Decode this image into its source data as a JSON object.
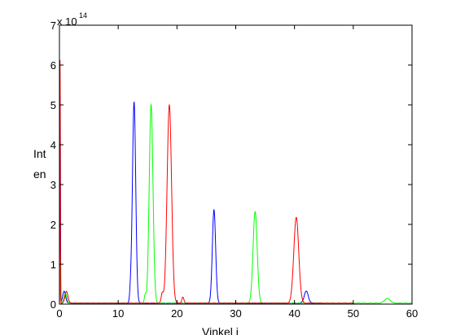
{
  "chart_data": {
    "type": "line",
    "title": "",
    "xlabel": "Vinkel i",
    "ylabel_lines": [
      "Int",
      "en"
    ],
    "y_multiplier_base": "x 10",
    "y_multiplier_exp": "14",
    "xlim": [
      0,
      60
    ],
    "ylim": [
      0,
      7
    ],
    "xticks": [
      0,
      10,
      20,
      30,
      40,
      50,
      60
    ],
    "yticks": [
      0,
      1,
      2,
      3,
      4,
      5,
      6,
      7
    ],
    "grid": false,
    "legend": "none",
    "series": [
      {
        "color": "#0000ff",
        "x_end": 45,
        "spike": {
          "x": 0.12,
          "y": 5.2
        },
        "peaks": [
          {
            "x": 12.7,
            "y": 5.05,
            "w": 0.28
          },
          {
            "x": 26.3,
            "y": 2.35,
            "w": 0.28
          },
          {
            "x": 42.0,
            "y": 0.3,
            "w": 0.35
          },
          {
            "x": 12.1,
            "y": 0.25,
            "w": 0.15
          },
          {
            "x": 0.8,
            "y": 0.3,
            "w": 0.25
          }
        ]
      },
      {
        "color": "#00ff00",
        "x_end": 60,
        "spike": {
          "x": 0.15,
          "y": 1.05
        },
        "peaks": [
          {
            "x": 15.6,
            "y": 4.98,
            "w": 0.32
          },
          {
            "x": 33.3,
            "y": 2.3,
            "w": 0.35
          },
          {
            "x": 55.8,
            "y": 0.12,
            "w": 0.5
          },
          {
            "x": 14.6,
            "y": 0.2,
            "w": 0.15
          },
          {
            "x": 1.0,
            "y": 0.25,
            "w": 0.25
          }
        ]
      },
      {
        "color": "#ff0000",
        "x_end": 50,
        "spike": {
          "x": 0.1,
          "y": 6.1
        },
        "peaks": [
          {
            "x": 18.7,
            "y": 4.98,
            "w": 0.38
          },
          {
            "x": 40.3,
            "y": 2.15,
            "w": 0.42
          },
          {
            "x": 17.5,
            "y": 0.25,
            "w": 0.18
          },
          {
            "x": 21.0,
            "y": 0.15,
            "w": 0.18
          },
          {
            "x": 1.2,
            "y": 0.3,
            "w": 0.25
          }
        ]
      }
    ]
  }
}
